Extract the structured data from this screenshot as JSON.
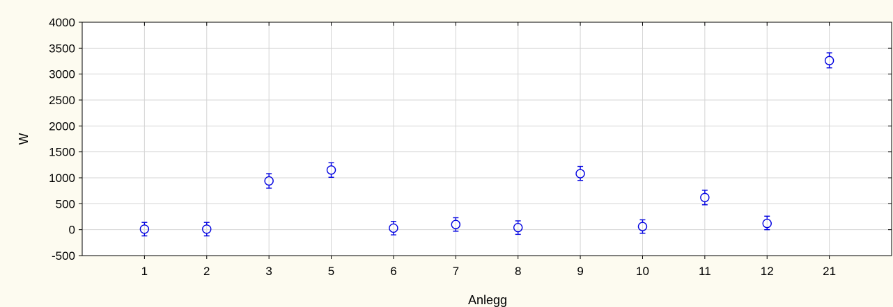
{
  "colors": {
    "background": "#fdfbf0",
    "plot_background": "#ffffff",
    "grid": "#d4d4d4",
    "axis": "#000000",
    "marker": "#0000e0"
  },
  "chart_data": {
    "type": "scatter",
    "title": "",
    "xlabel": "Anlegg",
    "ylabel": "W",
    "categories": [
      "1",
      "2",
      "3",
      "5",
      "6",
      "7",
      "8",
      "9",
      "10",
      "11",
      "12",
      "21"
    ],
    "ylim": [
      -500,
      4000
    ],
    "yticks": [
      -500,
      0,
      500,
      1000,
      1500,
      2000,
      2500,
      3000,
      3500,
      4000
    ],
    "grid": true,
    "series": [
      {
        "values": [
          10,
          10,
          940,
          1150,
          30,
          100,
          40,
          1080,
          60,
          620,
          120,
          3260
        ],
        "error_low": [
          -120,
          -120,
          800,
          1010,
          -100,
          -30,
          -90,
          950,
          -70,
          480,
          0,
          3120
        ],
        "error_high": [
          140,
          140,
          1080,
          1290,
          160,
          230,
          170,
          1220,
          190,
          760,
          260,
          3410
        ]
      }
    ]
  }
}
